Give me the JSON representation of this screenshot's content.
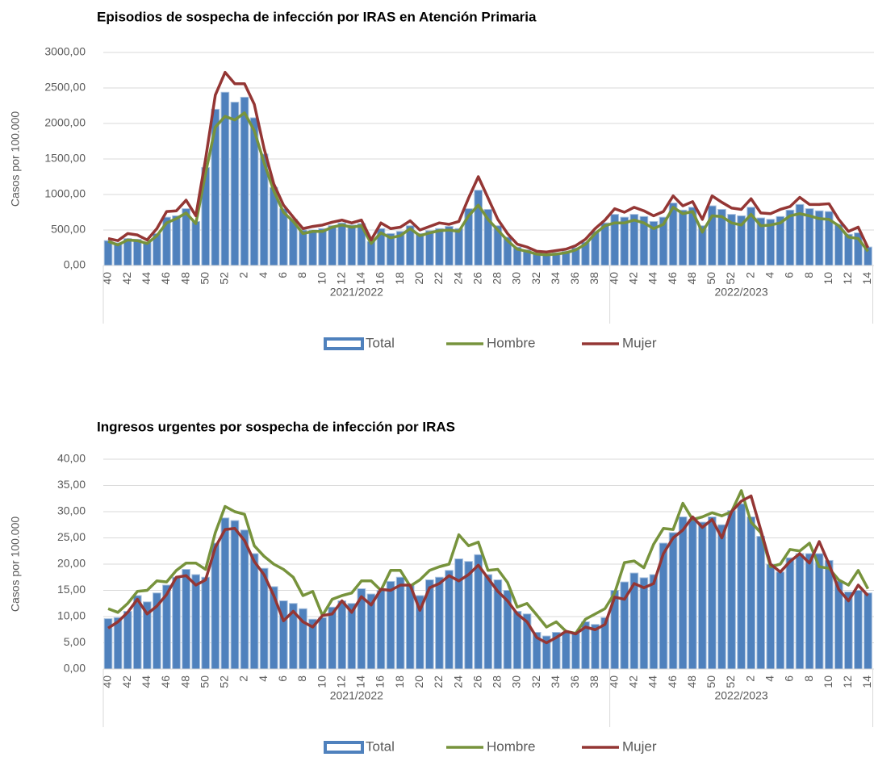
{
  "chart_data": [
    {
      "type": "combo",
      "title": "Episodios de sospecha de infección por IRAS en Atención Primaria",
      "y_label": "Casos por 100.000",
      "categories": [
        "40",
        null,
        "42",
        null,
        "44",
        null,
        "46",
        null,
        "48",
        null,
        "50",
        null,
        "52",
        null,
        "2",
        null,
        "4",
        null,
        "6",
        null,
        "8",
        null,
        "10",
        null,
        "12",
        null,
        "14",
        null,
        "16",
        null,
        "18",
        null,
        "20",
        null,
        "22",
        null,
        "24",
        null,
        "26",
        null,
        "28",
        null,
        "30",
        null,
        "32",
        null,
        "34",
        null,
        "36",
        null,
        "38",
        null,
        "40",
        null,
        "42",
        null,
        "44",
        null,
        "46",
        null,
        "48",
        null,
        "50",
        null,
        "52",
        null,
        "2",
        null,
        "4",
        null,
        "6",
        null,
        "8",
        null,
        "10",
        null,
        "12",
        null,
        "14"
      ],
      "groups": [
        {
          "label": "2021/2022",
          "count": 52
        },
        {
          "label": "2022/2023",
          "count": 27
        }
      ],
      "ylim": [
        0,
        3000
      ],
      "yticks": [
        {
          "value": 0,
          "label": "0,00"
        },
        {
          "value": 500,
          "label": "500,00"
        },
        {
          "value": 1000,
          "label": "1000,00"
        },
        {
          "value": 1500,
          "label": "1500,00"
        },
        {
          "value": 2000,
          "label": "2000,00"
        },
        {
          "value": 2500,
          "label": "2500,00"
        },
        {
          "value": 3000,
          "label": "3000,00"
        }
      ],
      "grid": true,
      "series": [
        {
          "name": "Total",
          "type": "bar",
          "color": "#4f81bd",
          "values": [
            350,
            320,
            380,
            370,
            330,
            450,
            680,
            700,
            800,
            620,
            1380,
            2200,
            2440,
            2300,
            2370,
            2080,
            1570,
            1100,
            800,
            650,
            500,
            500,
            520,
            560,
            600,
            570,
            590,
            340,
            520,
            450,
            480,
            560,
            450,
            490,
            520,
            550,
            520,
            800,
            1060,
            790,
            560,
            400,
            260,
            220,
            170,
            160,
            180,
            200,
            250,
            330,
            480,
            600,
            720,
            680,
            720,
            690,
            620,
            680,
            880,
            780,
            820,
            560,
            840,
            790,
            720,
            700,
            820,
            670,
            650,
            690,
            780,
            860,
            800,
            770,
            760,
            580,
            440,
            460,
            260
          ]
        },
        {
          "name": "Hombre",
          "type": "line",
          "color": "#77933c",
          "values": [
            340,
            290,
            360,
            350,
            310,
            420,
            600,
            660,
            740,
            590,
            1300,
            1950,
            2100,
            2050,
            2150,
            1900,
            1450,
            1050,
            750,
            620,
            450,
            480,
            480,
            540,
            570,
            540,
            560,
            310,
            460,
            390,
            420,
            520,
            420,
            460,
            490,
            500,
            480,
            700,
            850,
            650,
            500,
            350,
            230,
            200,
            160,
            150,
            160,
            180,
            220,
            300,
            450,
            560,
            600,
            600,
            640,
            600,
            520,
            580,
            820,
            730,
            760,
            470,
            700,
            690,
            600,
            570,
            720,
            560,
            570,
            600,
            700,
            730,
            700,
            660,
            650,
            560,
            400,
            380,
            200
          ]
        },
        {
          "name": "Mujer",
          "type": "line",
          "color": "#943634",
          "values": [
            380,
            350,
            450,
            430,
            360,
            520,
            760,
            770,
            920,
            700,
            1500,
            2400,
            2720,
            2560,
            2560,
            2270,
            1650,
            1150,
            850,
            680,
            520,
            550,
            570,
            610,
            640,
            600,
            640,
            360,
            600,
            520,
            540,
            630,
            500,
            550,
            600,
            580,
            620,
            950,
            1250,
            950,
            650,
            450,
            300,
            260,
            200,
            190,
            210,
            230,
            280,
            370,
            520,
            640,
            800,
            750,
            820,
            770,
            700,
            760,
            980,
            840,
            900,
            650,
            980,
            890,
            810,
            790,
            940,
            740,
            730,
            790,
            830,
            960,
            860,
            860,
            870,
            650,
            480,
            540,
            250
          ]
        }
      ]
    },
    {
      "type": "combo",
      "title": "Ingresos urgentes por sospecha de infección por IRAS",
      "y_label": "Casos por 100.000",
      "categories": [
        "40",
        null,
        "42",
        null,
        "44",
        null,
        "46",
        null,
        "48",
        null,
        "50",
        null,
        "52",
        null,
        "2",
        null,
        "4",
        null,
        "6",
        null,
        "8",
        null,
        "10",
        null,
        "12",
        null,
        "14",
        null,
        "16",
        null,
        "18",
        null,
        "20",
        null,
        "22",
        null,
        "24",
        null,
        "26",
        null,
        "28",
        null,
        "30",
        null,
        "32",
        null,
        "34",
        null,
        "36",
        null,
        "38",
        null,
        "40",
        null,
        "42",
        null,
        "44",
        null,
        "46",
        null,
        "48",
        null,
        "50",
        null,
        "52",
        null,
        "2",
        null,
        "4",
        null,
        "6",
        null,
        "8",
        null,
        "10",
        null,
        "12",
        null,
        "14"
      ],
      "groups": [
        {
          "label": "2021/2022",
          "count": 52
        },
        {
          "label": "2022/2023",
          "count": 27
        }
      ],
      "ylim": [
        0,
        40
      ],
      "yticks": [
        {
          "value": 0,
          "label": "0,00"
        },
        {
          "value": 5,
          "label": "5,00"
        },
        {
          "value": 10,
          "label": "10,00"
        },
        {
          "value": 15,
          "label": "15,00"
        },
        {
          "value": 20,
          "label": "20,00"
        },
        {
          "value": 25,
          "label": "25,00"
        },
        {
          "value": 30,
          "label": "30,00"
        },
        {
          "value": 35,
          "label": "35,00"
        },
        {
          "value": 40,
          "label": "40,00"
        }
      ],
      "grid": true,
      "series": [
        {
          "name": "Total",
          "type": "bar",
          "color": "#4f81bd",
          "values": [
            9.6,
            9.8,
            11,
            14,
            12.8,
            14.5,
            16,
            17.5,
            19,
            18,
            17.5,
            24,
            28.8,
            28.3,
            26.5,
            22,
            19.2,
            15.7,
            13,
            12.5,
            11.5,
            9.5,
            9.8,
            11.8,
            13,
            12.5,
            15.3,
            14.3,
            15,
            16.7,
            17.5,
            16,
            14,
            17,
            17.5,
            18.8,
            21,
            20.5,
            21.8,
            18,
            17,
            15,
            11,
            10.5,
            7,
            6.3,
            7,
            7,
            7,
            9,
            8.5,
            9.8,
            15,
            16.6,
            18.3,
            17.4,
            18,
            24,
            26,
            29,
            28.5,
            28,
            29,
            27.5,
            30.2,
            31.5,
            29,
            25.3,
            20,
            18.5,
            21.2,
            22,
            22,
            22,
            20.7,
            16.8,
            14.7,
            15,
            14.5
          ]
        },
        {
          "name": "Hombre",
          "type": "line",
          "color": "#77933c",
          "values": [
            11.5,
            10.8,
            12.5,
            14.8,
            15,
            16.8,
            16.6,
            18.8,
            20.2,
            20.2,
            19,
            26,
            31,
            30,
            29.5,
            23.5,
            21.5,
            20,
            19,
            17.5,
            14,
            14.8,
            10.2,
            13.3,
            14,
            14.5,
            16.8,
            16.8,
            15,
            18.8,
            18.8,
            15.8,
            17,
            18.8,
            19.5,
            20,
            25.6,
            23.5,
            24.2,
            18.8,
            19,
            16.5,
            11.8,
            12.5,
            10.3,
            8,
            9,
            7.2,
            6.8,
            9.5,
            10.5,
            11.5,
            14.5,
            20.3,
            20.6,
            19.3,
            23.8,
            26.8,
            26.6,
            31.6,
            28.5,
            29,
            29.8,
            29.2,
            30,
            34,
            28,
            26,
            19.5,
            20,
            22.8,
            22.5,
            24,
            19.5,
            19.2,
            17,
            16,
            18.8,
            15.3
          ]
        },
        {
          "name": "Mujer",
          "type": "line",
          "color": "#943634",
          "values": [
            7.8,
            9,
            10.8,
            13.3,
            10.5,
            12,
            14.2,
            17.5,
            17.8,
            16,
            17,
            23.2,
            26.6,
            26.8,
            24.5,
            20.5,
            18,
            14,
            9.2,
            11,
            9,
            8,
            10.2,
            10.5,
            13,
            10.8,
            13.8,
            12.2,
            15.2,
            15,
            16,
            16,
            11.2,
            15.5,
            16.3,
            17.8,
            16.8,
            18,
            19.8,
            17.3,
            14.8,
            13,
            10.5,
            9,
            6,
            5,
            6,
            7.2,
            6.7,
            8,
            7.5,
            8.5,
            13.7,
            13.3,
            16.3,
            15.5,
            16.3,
            22,
            25,
            26.5,
            29,
            27,
            28.5,
            25,
            30,
            32,
            33,
            26.5,
            20,
            18.5,
            20.5,
            22,
            20.2,
            24.3,
            20,
            15.2,
            13,
            16,
            14
          ]
        }
      ]
    }
  ]
}
